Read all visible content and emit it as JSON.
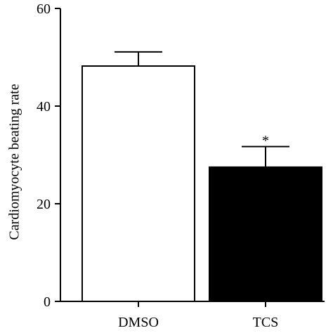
{
  "chart_data": {
    "type": "bar",
    "categories": [
      "DMSO",
      "TCS"
    ],
    "values": [
      48.2,
      27.5
    ],
    "errors": [
      2.9,
      4.2
    ],
    "colors": [
      "#ffffff",
      "#000000"
    ],
    "edge_color": "#000000",
    "annotations": [
      "",
      "*"
    ],
    "title": "",
    "xlabel": "",
    "ylabel": "Cardiomyocyte beating rate",
    "ylim": [
      0,
      60
    ],
    "yticks": [
      0,
      20,
      40,
      60
    ],
    "grid": false,
    "legend": "none"
  }
}
